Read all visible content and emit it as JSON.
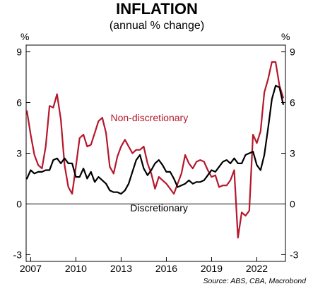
{
  "chart_data": {
    "type": "line",
    "title": "INFLATION",
    "subtitle": "(annual % change)",
    "y_unit_left": "%",
    "y_unit_right": "%",
    "ylim": [
      -3.4,
      9.4
    ],
    "yticks": [
      -3,
      0,
      3,
      6,
      9
    ],
    "ytick_labels": [
      "-3",
      "0",
      "3",
      "6",
      "9"
    ],
    "xlim": [
      2006.7,
      2023.9
    ],
    "xticks": [
      2007,
      2010,
      2013,
      2016,
      2019,
      2022
    ],
    "xtick_labels": [
      "2007",
      "2010",
      "2013",
      "2016",
      "2019",
      "2022"
    ],
    "grid": false,
    "source": "Source: ABS, CBA, Macrobond",
    "series": [
      {
        "name": "Non-discretionary",
        "color": "#b5172c",
        "label_x": 2012.3,
        "label_y": 4.9,
        "points": [
          [
            2006.75,
            5.5
          ],
          [
            2007.0,
            4.1
          ],
          [
            2007.25,
            2.9
          ],
          [
            2007.5,
            2.3
          ],
          [
            2007.75,
            2.1
          ],
          [
            2008.0,
            3.4
          ],
          [
            2008.25,
            5.8
          ],
          [
            2008.5,
            5.7
          ],
          [
            2008.75,
            6.5
          ],
          [
            2009.0,
            5.0
          ],
          [
            2009.25,
            2.3
          ],
          [
            2009.5,
            1.0
          ],
          [
            2009.75,
            0.6
          ],
          [
            2010.0,
            2.2
          ],
          [
            2010.25,
            3.9
          ],
          [
            2010.5,
            4.1
          ],
          [
            2010.75,
            3.4
          ],
          [
            2011.0,
            3.5
          ],
          [
            2011.25,
            4.2
          ],
          [
            2011.5,
            4.9
          ],
          [
            2011.75,
            5.1
          ],
          [
            2012.0,
            4.2
          ],
          [
            2012.25,
            2.2
          ],
          [
            2012.5,
            1.8
          ],
          [
            2012.75,
            2.8
          ],
          [
            2013.0,
            3.4
          ],
          [
            2013.25,
            3.8
          ],
          [
            2013.5,
            3.4
          ],
          [
            2013.75,
            3.0
          ],
          [
            2014.0,
            3.2
          ],
          [
            2014.25,
            3.2
          ],
          [
            2014.5,
            3.4
          ],
          [
            2014.75,
            2.4
          ],
          [
            2015.0,
            1.8
          ],
          [
            2015.25,
            0.9
          ],
          [
            2015.5,
            1.6
          ],
          [
            2015.75,
            1.4
          ],
          [
            2016.0,
            1.2
          ],
          [
            2016.25,
            0.9
          ],
          [
            2016.5,
            0.6
          ],
          [
            2016.75,
            1.2
          ],
          [
            2017.0,
            1.8
          ],
          [
            2017.25,
            2.9
          ],
          [
            2017.5,
            2.4
          ],
          [
            2017.75,
            2.1
          ],
          [
            2018.0,
            2.5
          ],
          [
            2018.25,
            2.6
          ],
          [
            2018.5,
            2.5
          ],
          [
            2018.75,
            2.0
          ],
          [
            2019.0,
            1.6
          ],
          [
            2019.25,
            1.7
          ],
          [
            2019.5,
            1.0
          ],
          [
            2019.75,
            1.1
          ],
          [
            2020.0,
            1.1
          ],
          [
            2020.25,
            1.4
          ],
          [
            2020.5,
            2.0
          ],
          [
            2020.75,
            -2.0
          ],
          [
            2021.0,
            -0.5
          ],
          [
            2021.25,
            -0.7
          ],
          [
            2021.5,
            -0.4
          ],
          [
            2021.75,
            4.1
          ],
          [
            2022.0,
            3.6
          ],
          [
            2022.25,
            4.3
          ],
          [
            2022.5,
            6.6
          ],
          [
            2022.75,
            7.4
          ],
          [
            2023.0,
            8.4
          ],
          [
            2023.25,
            8.4
          ],
          [
            2023.5,
            7.0
          ],
          [
            2023.75,
            6.3
          ]
        ]
      },
      {
        "name": "Discretionary",
        "color": "#000000",
        "label_x": 2013.6,
        "label_y": -0.45,
        "points": [
          [
            2006.75,
            1.5
          ],
          [
            2007.0,
            2.0
          ],
          [
            2007.25,
            1.8
          ],
          [
            2007.5,
            1.9
          ],
          [
            2007.75,
            1.9
          ],
          [
            2008.0,
            2.0
          ],
          [
            2008.25,
            2.0
          ],
          [
            2008.5,
            2.6
          ],
          [
            2008.75,
            2.7
          ],
          [
            2009.0,
            2.4
          ],
          [
            2009.25,
            2.7
          ],
          [
            2009.5,
            2.4
          ],
          [
            2009.75,
            2.4
          ],
          [
            2010.0,
            1.6
          ],
          [
            2010.25,
            1.6
          ],
          [
            2010.5,
            2.1
          ],
          [
            2010.75,
            1.5
          ],
          [
            2011.0,
            1.9
          ],
          [
            2011.25,
            1.3
          ],
          [
            2011.5,
            1.6
          ],
          [
            2011.75,
            1.4
          ],
          [
            2012.0,
            1.2
          ],
          [
            2012.25,
            0.8
          ],
          [
            2012.5,
            0.7
          ],
          [
            2012.75,
            0.7
          ],
          [
            2013.0,
            0.6
          ],
          [
            2013.25,
            0.8
          ],
          [
            2013.5,
            1.2
          ],
          [
            2013.75,
            1.9
          ],
          [
            2014.0,
            2.6
          ],
          [
            2014.25,
            2.9
          ],
          [
            2014.5,
            2.1
          ],
          [
            2014.75,
            1.7
          ],
          [
            2015.0,
            2.0
          ],
          [
            2015.25,
            2.4
          ],
          [
            2015.5,
            2.6
          ],
          [
            2015.75,
            2.3
          ],
          [
            2016.0,
            1.9
          ],
          [
            2016.25,
            1.9
          ],
          [
            2016.5,
            1.5
          ],
          [
            2016.75,
            1.0
          ],
          [
            2017.0,
            1.1
          ],
          [
            2017.25,
            1.2
          ],
          [
            2017.5,
            1.4
          ],
          [
            2017.75,
            1.2
          ],
          [
            2018.0,
            1.3
          ],
          [
            2018.25,
            1.3
          ],
          [
            2018.5,
            1.4
          ],
          [
            2018.75,
            1.7
          ],
          [
            2019.0,
            2.0
          ],
          [
            2019.25,
            1.9
          ],
          [
            2019.5,
            2.2
          ],
          [
            2019.75,
            2.5
          ],
          [
            2020.0,
            2.6
          ],
          [
            2020.25,
            2.4
          ],
          [
            2020.5,
            2.7
          ],
          [
            2020.75,
            2.4
          ],
          [
            2021.0,
            2.4
          ],
          [
            2021.25,
            2.9
          ],
          [
            2021.5,
            3.0
          ],
          [
            2021.75,
            3.1
          ],
          [
            2022.0,
            2.3
          ],
          [
            2022.25,
            2.0
          ],
          [
            2022.5,
            2.9
          ],
          [
            2022.75,
            4.5
          ],
          [
            2023.0,
            6.2
          ],
          [
            2023.25,
            7.0
          ],
          [
            2023.5,
            6.9
          ],
          [
            2023.75,
            5.9
          ]
        ]
      }
    ]
  }
}
